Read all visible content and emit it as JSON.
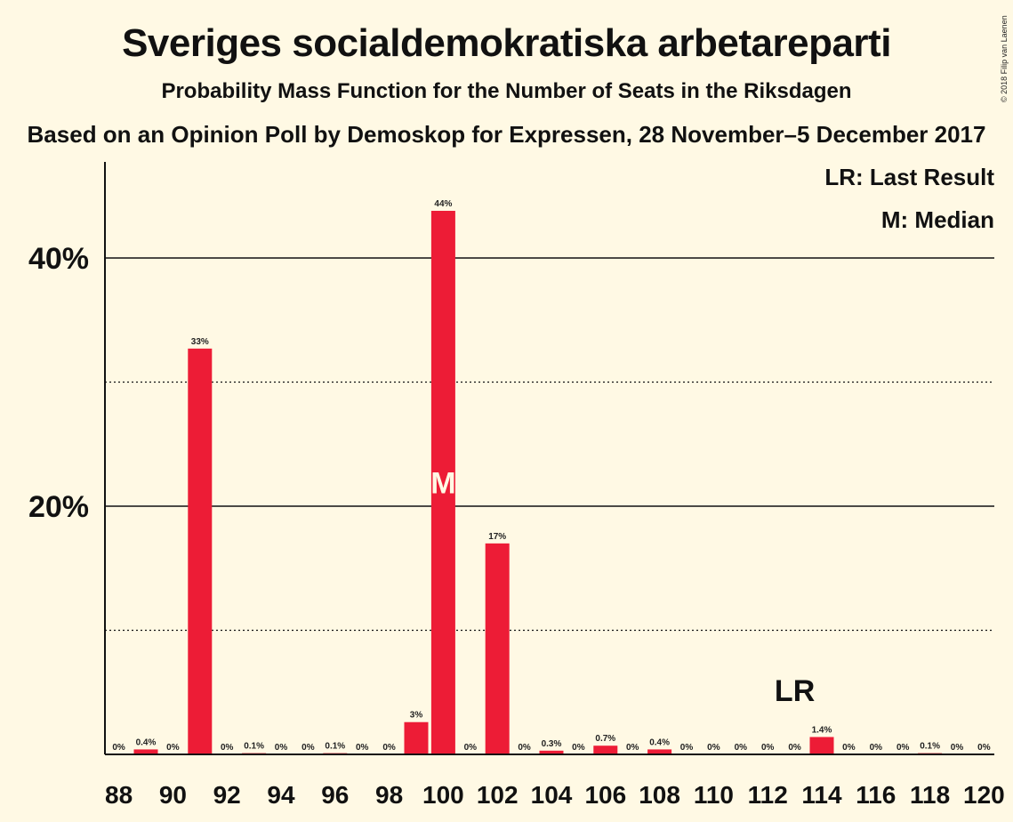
{
  "header": {
    "title": "Sveriges socialdemokratiska arbetareparti",
    "subtitle": "Probability Mass Function for the Number of Seats in the Riksdagen",
    "subtitle2": "Based on an Opinion Poll by Demoskop for Expressen, 28 November–5 December 2017",
    "copyright": "© 2018 Filip van Laenen"
  },
  "legend": {
    "last_result": "LR: Last Result",
    "median": "M: Median"
  },
  "chart_data": {
    "type": "bar",
    "title": "Sveriges socialdemokratiska arbetareparti",
    "xlabel": "",
    "ylabel": "",
    "categories": [
      88,
      89,
      90,
      91,
      92,
      93,
      94,
      95,
      96,
      97,
      98,
      99,
      100,
      101,
      102,
      103,
      104,
      105,
      106,
      107,
      108,
      109,
      110,
      111,
      112,
      113,
      114,
      115,
      116,
      117,
      118,
      119,
      120
    ],
    "values": [
      0,
      0.4,
      0,
      32.7,
      0,
      0.1,
      0,
      0,
      0.1,
      0,
      0,
      2.6,
      43.8,
      0,
      17.0,
      0,
      0.3,
      0,
      0.7,
      0,
      0.4,
      0,
      0,
      0,
      0,
      0,
      1.4,
      0,
      0,
      0,
      0.1,
      0,
      0
    ],
    "value_labels": [
      "0%",
      "0.4%",
      "0%",
      "33%",
      "0%",
      "0.1%",
      "0%",
      "0%",
      "0.1%",
      "0%",
      "0%",
      "3%",
      "44%",
      "0%",
      "17%",
      "0%",
      "0.3%",
      "0%",
      "0.7%",
      "0%",
      "0.4%",
      "0%",
      "0%",
      "0%",
      "0%",
      "0%",
      "1.4%",
      "0%",
      "0%",
      "0%",
      "0.1%",
      "0%",
      "0%"
    ],
    "x_tick_labels": [
      "88",
      "90",
      "92",
      "94",
      "96",
      "98",
      "100",
      "102",
      "104",
      "106",
      "108",
      "110",
      "112",
      "114",
      "116",
      "118",
      "120"
    ],
    "x_tick_values": [
      88,
      90,
      92,
      94,
      96,
      98,
      100,
      102,
      104,
      106,
      108,
      110,
      112,
      114,
      116,
      118,
      120
    ],
    "y_tick_labels": [
      "20%",
      "40%"
    ],
    "y_tick_values": [
      20,
      40
    ],
    "y_gridlines_solid": [
      20,
      40
    ],
    "y_gridlines_dotted": [
      10,
      30
    ],
    "ylim": [
      0,
      47.7
    ],
    "median_seat": 100,
    "median_mark": "M",
    "last_result_seat": 113,
    "last_result_mark": "LR",
    "colors": {
      "bar": "#ed1c36",
      "background": "#fff9e4",
      "text": "#111111"
    }
  }
}
